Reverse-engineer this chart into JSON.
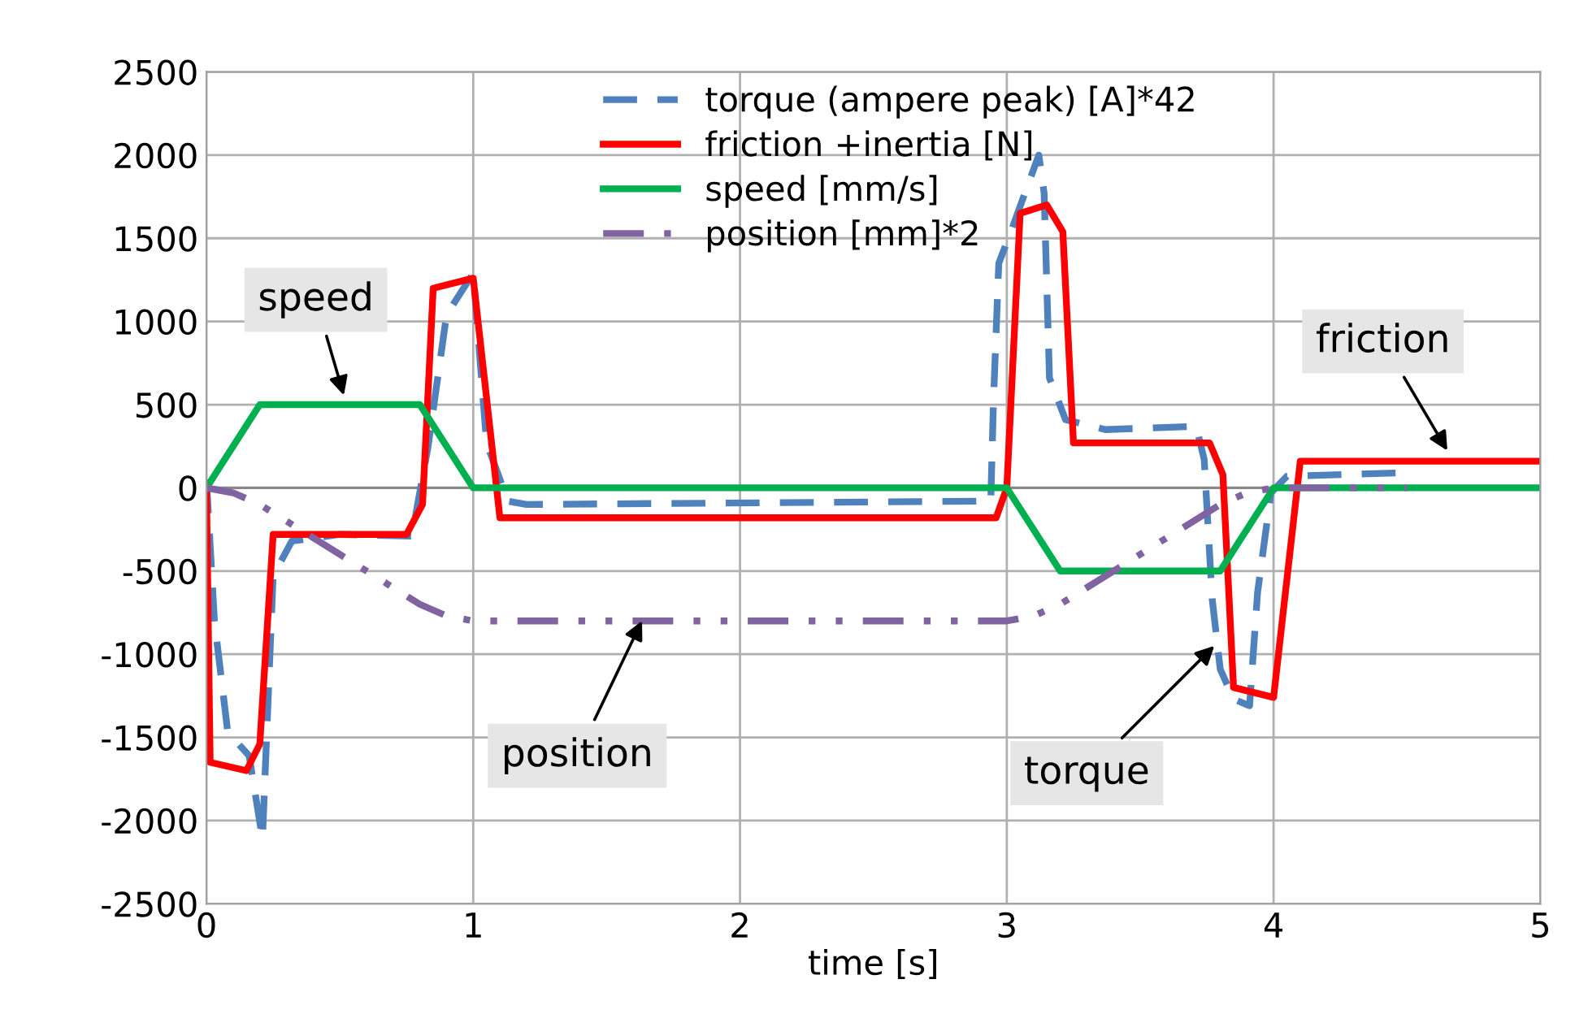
{
  "chart_data": {
    "type": "line",
    "xlabel": "time [s]",
    "xlim": [
      0,
      5
    ],
    "xticks": [
      0,
      1,
      2,
      3,
      4,
      5
    ],
    "ylim": [
      -2500,
      2500
    ],
    "yticks": [
      -2500,
      -2000,
      -1500,
      -1000,
      -500,
      0,
      500,
      1000,
      1500,
      2000,
      2500
    ],
    "grid": true,
    "legend": "top",
    "marker": "none",
    "series": [
      {
        "name": "torque (ampere peak) [A]*42",
        "color": "#4f81bd",
        "line_style": "dashed",
        "x": [
          0,
          0.03,
          0.08,
          0.16,
          0.21,
          0.25,
          0.32,
          0.5,
          0.77,
          0.83,
          0.9,
          1.0,
          1.05,
          1.13,
          1.2,
          2.94,
          2.95,
          2.97,
          3.02,
          3.12,
          3.14,
          3.16,
          3.22,
          3.37,
          3.71,
          3.74,
          3.77,
          3.8,
          3.85,
          3.91,
          3.94,
          3.99,
          4.05,
          4.48
        ],
        "values": [
          50,
          -800,
          -1470,
          -1610,
          -2110,
          -530,
          -320,
          -280,
          -290,
          240,
          1040,
          1290,
          270,
          -80,
          -100,
          -80,
          520,
          1350,
          1560,
          2000,
          1770,
          660,
          410,
          350,
          370,
          170,
          -670,
          -1090,
          -1270,
          -1310,
          -630,
          -30,
          70,
          90
        ]
      },
      {
        "name": "friction +inertia [N]",
        "color": "#ff0000",
        "line_style": "solid",
        "x": [
          0,
          0.014,
          0.15,
          0.2,
          0.25,
          0.75,
          0.81,
          0.85,
          1.0,
          1.1,
          2.96,
          3.0,
          3.05,
          3.15,
          3.21,
          3.25,
          3.76,
          3.81,
          3.85,
          4.0,
          4.1,
          5.0
        ],
        "values": [
          0,
          -1650,
          -1700,
          -1540,
          -280,
          -280,
          -100,
          1200,
          1260,
          -180,
          -180,
          0,
          1650,
          1700,
          1540,
          270,
          270,
          80,
          -1200,
          -1260,
          160,
          160
        ]
      },
      {
        "name": "speed [mm/s]",
        "color": "#00b050",
        "line_style": "solid",
        "x": [
          0,
          0.2,
          0.8,
          1.0,
          3.0,
          3.2,
          3.8,
          4.0,
          5.0
        ],
        "values": [
          0,
          500,
          500,
          0,
          0,
          -500,
          -500,
          0,
          0
        ]
      },
      {
        "name": "position [mm]*2",
        "color": "#8064a2",
        "line_style": "dashdotdot",
        "x": [
          0,
          0.1,
          0.2,
          0.5,
          0.8,
          0.9,
          1.0,
          3.0,
          3.1,
          3.2,
          3.5,
          3.8,
          3.9,
          4.0,
          4.5
        ],
        "values": [
          0,
          -30,
          -100,
          -400,
          -700,
          -770,
          -800,
          -800,
          -770,
          -700,
          -400,
          -100,
          -30,
          0,
          0
        ]
      }
    ],
    "annotations": [
      {
        "text": "speed",
        "x": 0.52,
        "y": 530
      },
      {
        "text": "position",
        "x": 1.64,
        "y": -775
      },
      {
        "text": "torque",
        "x": 3.79,
        "y": -930
      },
      {
        "text": "friction",
        "x": 4.66,
        "y": 200
      }
    ]
  }
}
